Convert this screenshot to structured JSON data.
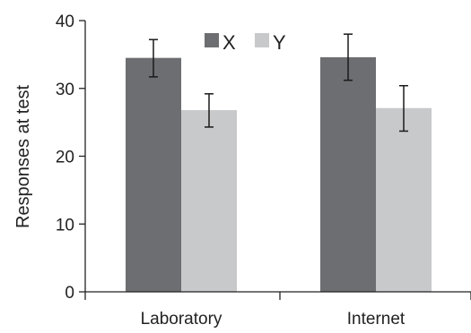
{
  "chart_data": {
    "type": "bar",
    "categories": [
      "Laboratory",
      "Internet"
    ],
    "series": [
      {
        "name": "X",
        "values": [
          34.5,
          34.6
        ],
        "error_low": [
          31.7,
          31.2
        ],
        "error_high": [
          37.2,
          38.0
        ],
        "color": "#6d6e71"
      },
      {
        "name": "Y",
        "values": [
          26.8,
          27.1
        ],
        "error_low": [
          24.3,
          23.7
        ],
        "error_high": [
          29.2,
          30.4
        ],
        "color": "#c8c9cb"
      }
    ],
    "ylabel": "Responses at test",
    "xlabel": "",
    "title": "",
    "ylim": [
      0,
      40
    ],
    "yticks": [
      0,
      10,
      20,
      30,
      40
    ],
    "legend_position": "top",
    "grid": false
  }
}
